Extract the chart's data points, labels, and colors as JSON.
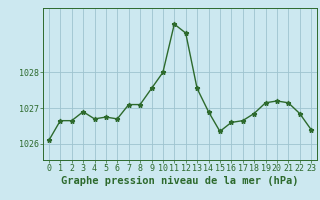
{
  "x": [
    0,
    1,
    2,
    3,
    4,
    5,
    6,
    7,
    8,
    9,
    10,
    11,
    12,
    13,
    14,
    15,
    16,
    17,
    18,
    19,
    20,
    21,
    22,
    23
  ],
  "y": [
    1026.1,
    1026.65,
    1026.65,
    1026.9,
    1026.7,
    1026.75,
    1026.7,
    1027.1,
    1027.1,
    1027.55,
    1028.0,
    1029.35,
    1029.1,
    1027.55,
    1026.9,
    1026.35,
    1026.6,
    1026.65,
    1026.85,
    1027.15,
    1027.2,
    1027.15,
    1026.85,
    1026.4
  ],
  "line_color": "#2d6a2d",
  "marker": "*",
  "marker_size": 3.5,
  "background_color": "#cce8f0",
  "grid_color": "#9ec4cf",
  "axis_color": "#2d6a2d",
  "ylabel_ticks": [
    1026,
    1027,
    1028
  ],
  "ylim": [
    1025.55,
    1029.8
  ],
  "xlim": [
    -0.5,
    23.5
  ],
  "xlabel": "Graphe pression niveau de la mer (hPa)",
  "xlabel_fontsize": 7.5,
  "tick_fontsize": 6.0,
  "line_width": 1.0
}
